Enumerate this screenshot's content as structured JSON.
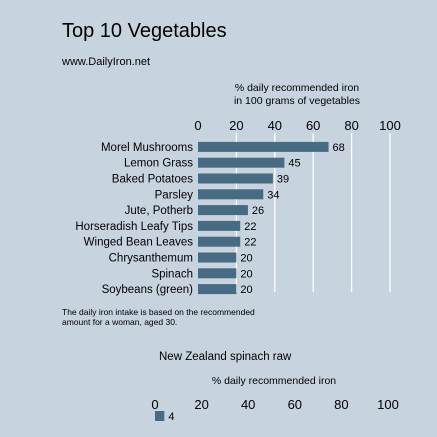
{
  "header": {
    "title": "Top 10 Vegetables",
    "subtitle": "www.DailyIron.net"
  },
  "colors": {
    "background": "#c7d3df",
    "bar": "#466b82",
    "gridline": "#ffffff"
  },
  "chart_data": [
    {
      "type": "bar",
      "orientation": "horizontal",
      "xlabel": [
        "% daily recommended iron",
        "in 100 grams of vegetables"
      ],
      "xlim": [
        0,
        100
      ],
      "xticks": [
        0,
        20,
        40,
        60,
        80,
        100
      ],
      "grid": true,
      "categories": [
        "Morel Mushrooms",
        "Lemon Grass",
        "Baked Potatoes",
        "Parsley",
        "Jute, Potherb",
        "Horseradish Leafy Tips",
        "Winged Bean Leaves",
        "Chrysanthemum",
        "Spinach",
        "Soybeans (green)"
      ],
      "values": [
        68,
        45,
        39,
        34,
        26,
        22,
        22,
        20,
        20,
        20
      ]
    },
    {
      "type": "bar",
      "orientation": "horizontal",
      "title": "New Zealand spinach raw",
      "xlabel": "% daily recommended iron",
      "xlim": [
        0,
        100
      ],
      "xticks": [
        0,
        20,
        40,
        60,
        80,
        100
      ],
      "categories": [
        ""
      ],
      "values": [
        4
      ]
    }
  ],
  "footnote": {
    "line1": "The daily iron intake is based on the recommended",
    "line2": "amount for a woman, aged 30."
  }
}
